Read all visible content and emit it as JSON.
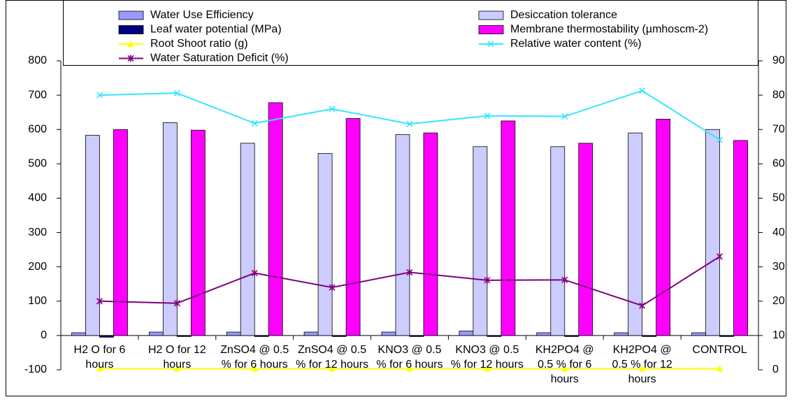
{
  "chart_data": {
    "type": "bar",
    "categories": [
      "H2 O for 6 hours",
      "H2 O for 12 hours",
      "ZnSO4 @ 0.5 % for 6 hours",
      "ZnSO4 @ 0.5 % for 12 hours",
      "KNO3 @ 0.5 % for 6 hours",
      "KNO3 @ 0.5 % for 12 hours",
      "KH2PO4 @ 0.5 % for 6 hours",
      "KH2PO4 @ 0.5 % for 12 hours",
      "CONTROL"
    ],
    "series": [
      {
        "name": "Water Use Efficiency",
        "color": "#9999ff",
        "values": [
          8,
          10,
          10,
          10,
          10,
          13,
          8,
          8,
          8
        ]
      },
      {
        "name": "Desiccation tolerance",
        "color": "#ccccff",
        "values": [
          583,
          620,
          560,
          530,
          585,
          550,
          550,
          590,
          600
        ]
      },
      {
        "name": "Leaf water potential (MPa)",
        "color": "#000080",
        "values": [
          -5,
          -3,
          -3,
          -3,
          -3,
          -3,
          -3,
          -3,
          -3
        ]
      },
      {
        "name": "Membrane thermostability (µmhoscm-2)",
        "color": "#ff00ff",
        "values": [
          600,
          598,
          678,
          632,
          590,
          625,
          560,
          630,
          568
        ]
      },
      {
        "name": "Root Shoot ratio (g)",
        "color": "#ffff00",
        "type": "line",
        "marker": "triangle",
        "axis": "y2",
        "values": [
          0.3,
          0.3,
          0.3,
          0.3,
          0.3,
          0.3,
          0.3,
          0.3,
          0.35
        ]
      },
      {
        "name": "Relative water content (%)",
        "color": "#33e6ff",
        "type": "line",
        "marker": "x",
        "axis": "y2",
        "values": [
          80,
          80.6,
          71.8,
          76,
          71.6,
          74,
          73.8,
          81.3,
          67
        ]
      },
      {
        "name": "Water Saturation Deficit (%)",
        "color": "#800080",
        "type": "line",
        "marker": "star",
        "axis": "y2",
        "values": [
          20,
          19.4,
          28.2,
          24,
          28.4,
          26.1,
          26.2,
          18.7,
          33
        ]
      }
    ],
    "ylim": [
      -100,
      800
    ],
    "yticks": [
      -100,
      0,
      100,
      200,
      300,
      400,
      500,
      600,
      700,
      800
    ],
    "y2lim": [
      0,
      90
    ],
    "y2ticks": [
      0,
      10,
      20,
      30,
      40,
      50,
      60,
      70,
      80,
      90
    ],
    "grid": false,
    "legend": "top"
  }
}
